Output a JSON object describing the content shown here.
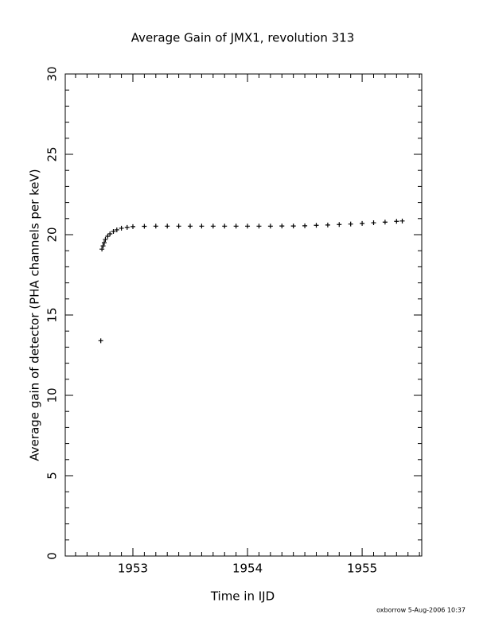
{
  "chart_data": {
    "type": "scatter",
    "title": "Average Gain of JMX1, revolution 313",
    "x_label": "Time in IJD",
    "y_label": "Average gain of detector (PHA channels per keV)",
    "footer": "oxborrow  5-Aug-2006 10:37",
    "color": "#000000",
    "x": [
      1952.72,
      1952.73,
      1952.74,
      1952.75,
      1952.76,
      1952.78,
      1952.8,
      1952.83,
      1952.86,
      1952.9,
      1952.95,
      1953.0,
      1953.1,
      1953.2,
      1953.3,
      1953.4,
      1953.5,
      1953.6,
      1953.7,
      1953.8,
      1953.9,
      1954.0,
      1954.1,
      1954.2,
      1954.3,
      1954.4,
      1954.5,
      1954.6,
      1954.7,
      1954.8,
      1954.9,
      1955.0,
      1955.1,
      1955.2,
      1955.3,
      1955.35
    ],
    "values": [
      13.4,
      19.1,
      19.3,
      19.5,
      19.7,
      19.9,
      20.05,
      20.2,
      20.3,
      20.4,
      20.45,
      20.5,
      20.52,
      20.53,
      20.53,
      20.53,
      20.53,
      20.53,
      20.53,
      20.53,
      20.53,
      20.53,
      20.53,
      20.53,
      20.54,
      20.54,
      20.55,
      20.58,
      20.6,
      20.63,
      20.66,
      20.7,
      20.74,
      20.78,
      20.83,
      20.85
    ],
    "xlim": [
      1952.41,
      1955.52
    ],
    "ylim": [
      0,
      30
    ],
    "xticks": [
      1953,
      1954,
      1955
    ],
    "yticks": [
      0,
      5,
      10,
      15,
      20,
      25,
      30
    ],
    "xminorticks": [
      1952.5,
      1952.6,
      1952.7,
      1952.8,
      1952.9,
      1953.1,
      1953.2,
      1953.3,
      1953.4,
      1953.5,
      1953.6,
      1953.7,
      1953.8,
      1953.9,
      1954.1,
      1954.2,
      1954.3,
      1954.4,
      1954.5,
      1954.6,
      1954.7,
      1954.8,
      1954.9,
      1955.1,
      1955.2,
      1955.3,
      1955.4,
      1955.5
    ],
    "yminorticks": [
      1,
      2,
      3,
      4,
      6,
      7,
      8,
      9,
      11,
      12,
      13,
      14,
      16,
      17,
      18,
      19,
      21,
      22,
      23,
      24,
      26,
      27,
      28,
      29
    ]
  }
}
